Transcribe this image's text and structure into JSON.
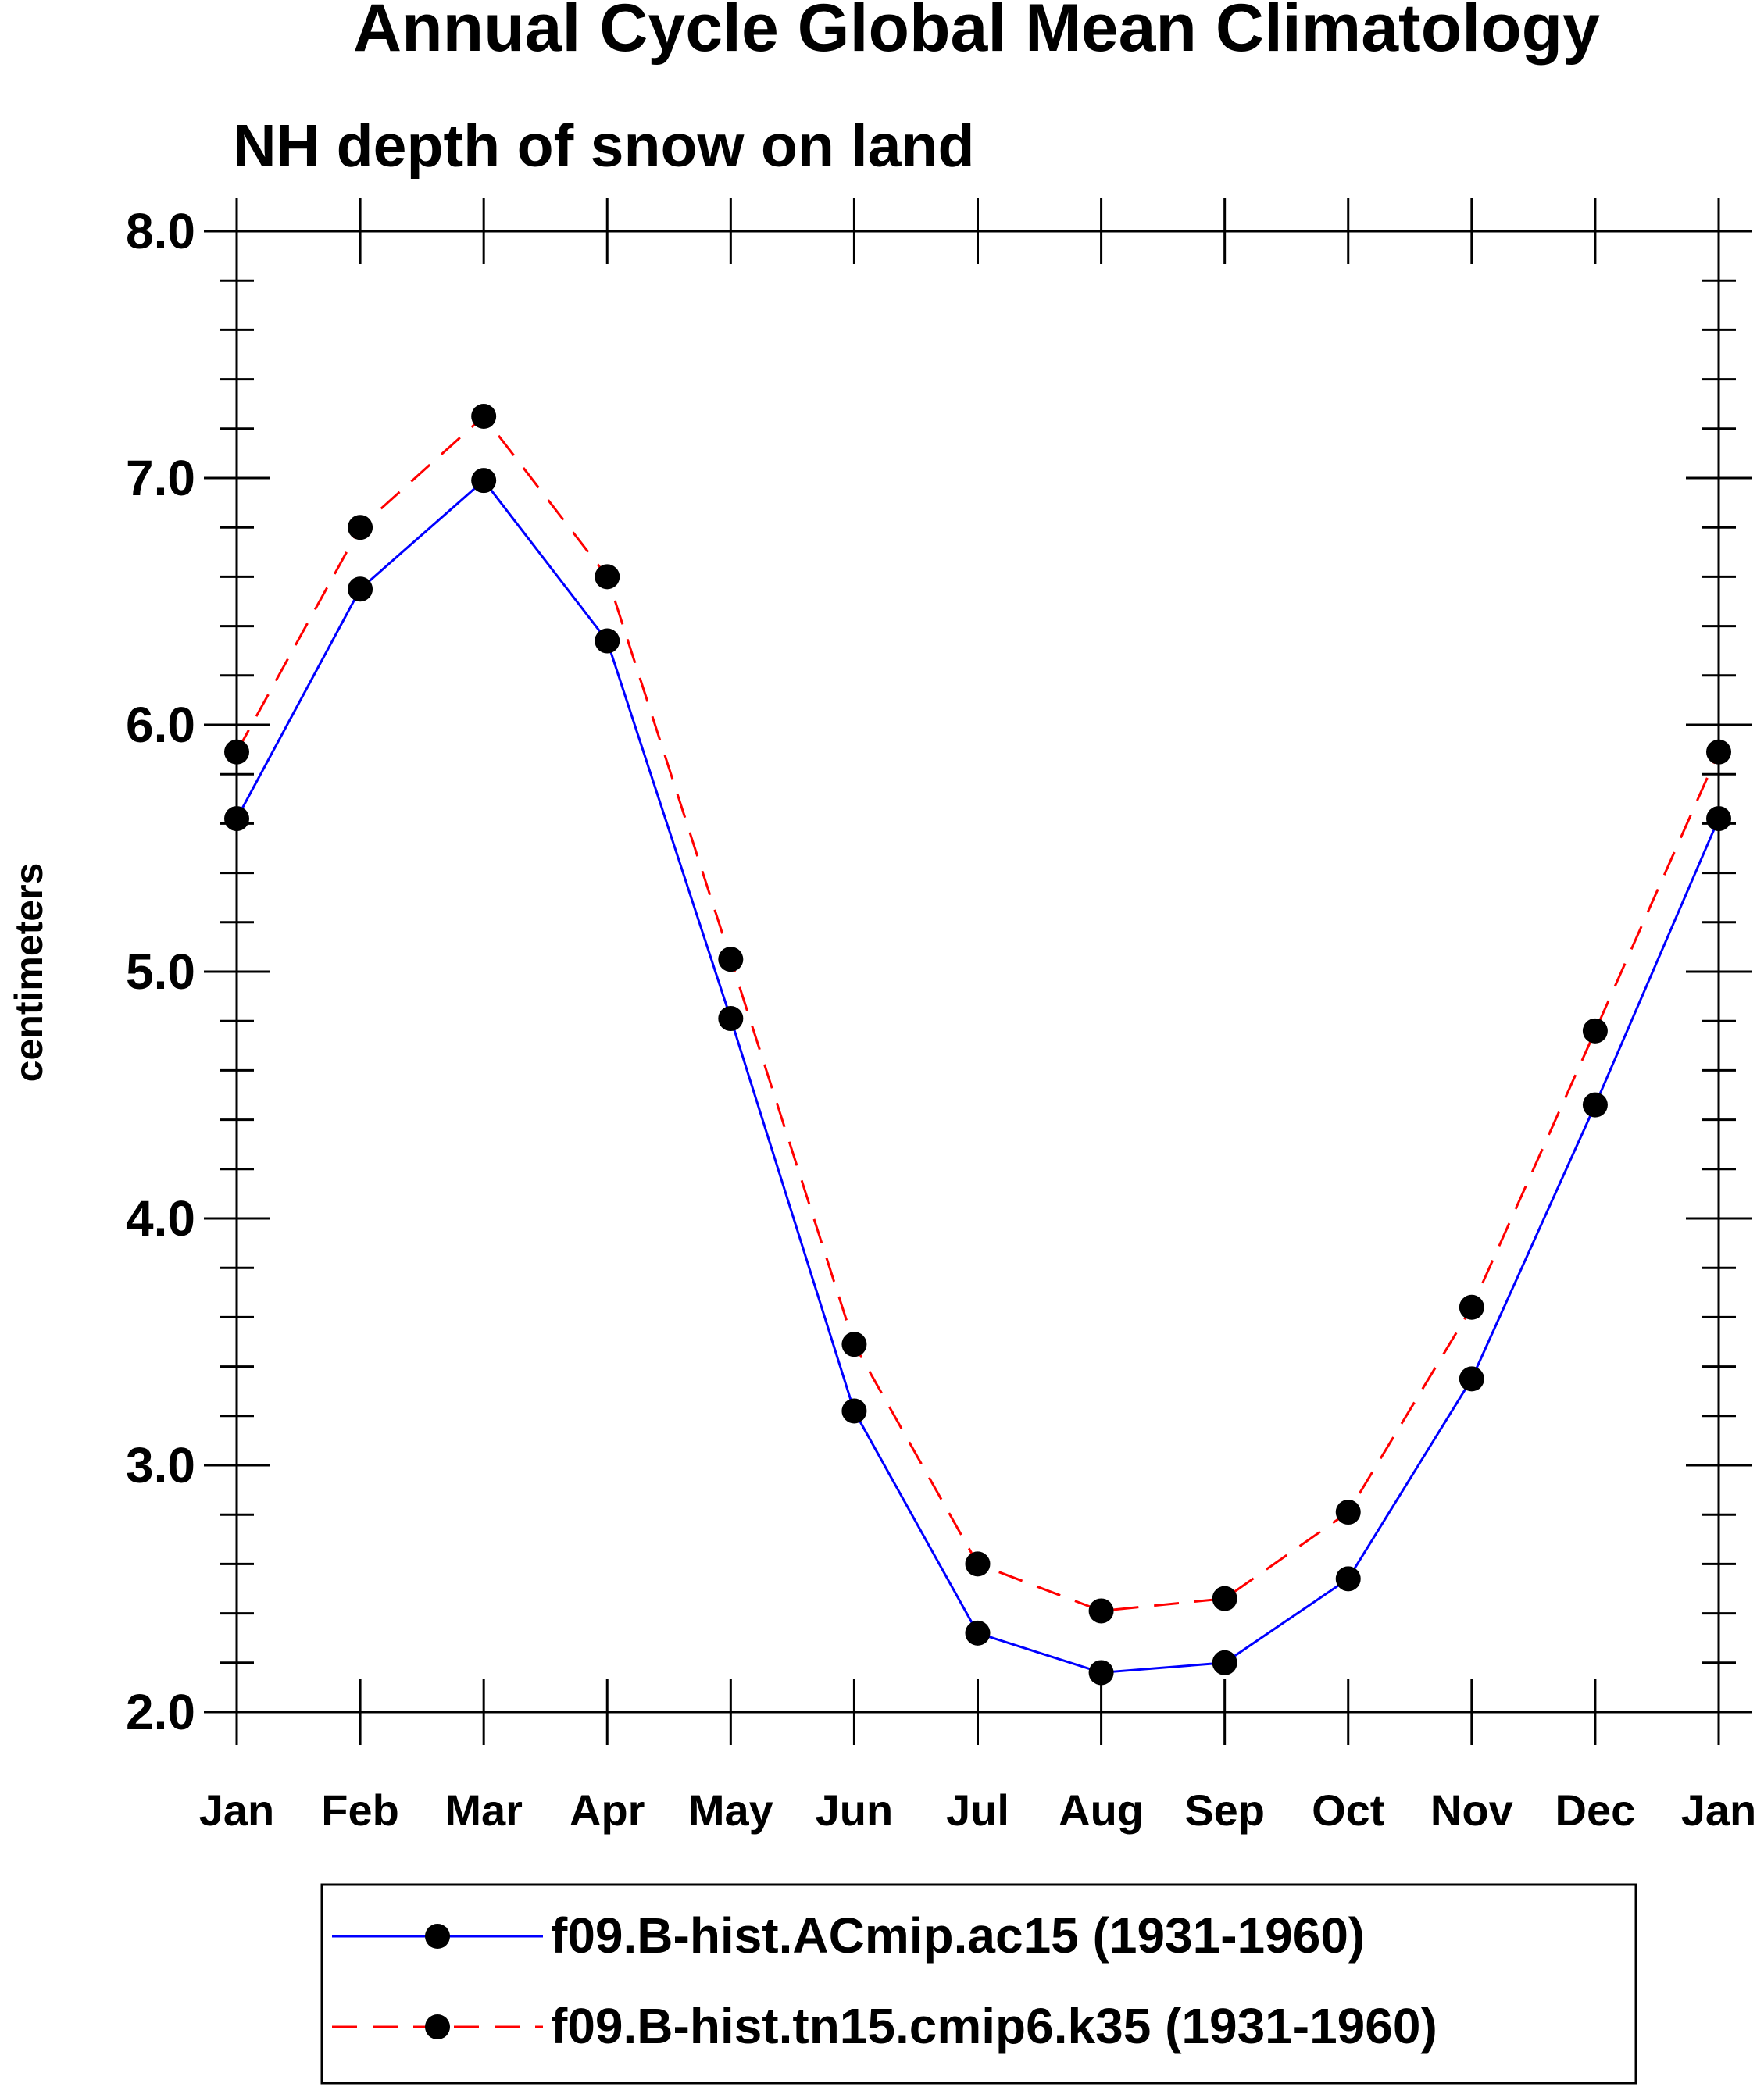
{
  "chart_data": {
    "type": "line",
    "title": "Annual Cycle Global Mean Climatology",
    "subtitle": "NH depth of snow on land",
    "ylabel": "centimeters",
    "xlabel": "",
    "categories": [
      "Jan",
      "Feb",
      "Mar",
      "Apr",
      "May",
      "Jun",
      "Jul",
      "Aug",
      "Sep",
      "Oct",
      "Nov",
      "Dec",
      "Jan"
    ],
    "ylim": [
      2.0,
      8.0
    ],
    "yticks": [
      "2.0",
      "3.0",
      "4.0",
      "5.0",
      "6.0",
      "7.0",
      "8.0"
    ],
    "y_minor_step": 0.2,
    "grid": false,
    "legend_position": "bottom",
    "series": [
      {
        "name": "f09.B-hist.ACmip.ac15 (1931-1960)",
        "color": "#0000ff",
        "style": "solid",
        "marker": "filled-circle",
        "values": [
          5.62,
          6.55,
          6.99,
          6.34,
          4.81,
          3.22,
          2.32,
          2.16,
          2.2,
          2.54,
          3.35,
          4.46,
          5.62
        ]
      },
      {
        "name": "f09.B-hist.tn15.cmip6.k35 (1931-1960)",
        "color": "#ff0000",
        "style": "dashed",
        "marker": "filled-circle",
        "values": [
          5.89,
          6.8,
          7.25,
          6.6,
          5.05,
          3.49,
          2.6,
          2.41,
          2.46,
          2.81,
          3.64,
          4.76,
          5.89
        ]
      }
    ]
  }
}
